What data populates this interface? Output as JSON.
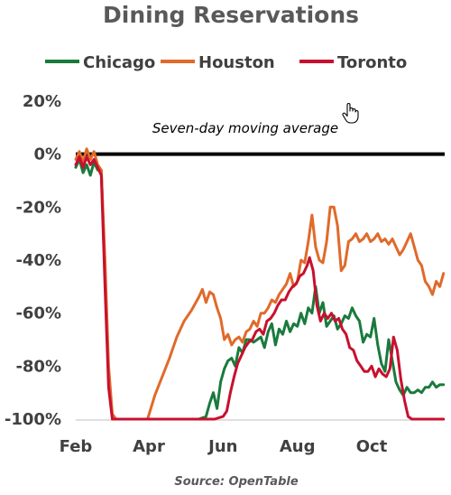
{
  "chart_data": {
    "type": "line",
    "title": "Dining Reservations",
    "annotation": "Seven-day moving average",
    "source": "Source: OpenTable",
    "xlabel": "",
    "ylabel": "",
    "ylim": [
      -100,
      20
    ],
    "y_ticks": [
      "20%",
      "0%",
      "-20%",
      "-40%",
      "-60%",
      "-80%",
      "-100%"
    ],
    "y_tick_values": [
      20,
      0,
      -20,
      -40,
      -60,
      -80,
      -100
    ],
    "x_ticks": [
      "Feb",
      "Apr",
      "Jun",
      "Aug",
      "Oct"
    ],
    "x_tick_values": [
      "2020-02-01",
      "2020-04-01",
      "2020-06-01",
      "2020-08-01",
      "2020-10-01"
    ],
    "xlim": [
      "2020-02-01",
      "2020-11-30"
    ],
    "legend_position": "top",
    "grid": false,
    "series": [
      {
        "name": "Chicago",
        "color": "#1a7a3c",
        "points": [
          [
            "2020-02-01",
            -5
          ],
          [
            "2020-02-04",
            -2
          ],
          [
            "2020-02-07",
            -7
          ],
          [
            "2020-02-10",
            -4
          ],
          [
            "2020-02-13",
            -8
          ],
          [
            "2020-02-16",
            -3
          ],
          [
            "2020-02-19",
            -6
          ],
          [
            "2020-02-22",
            -6
          ],
          [
            "2020-02-25",
            -45
          ],
          [
            "2020-02-28",
            -85
          ],
          [
            "2020-03-02",
            -99
          ],
          [
            "2020-03-05",
            -100
          ],
          [
            "2020-03-20",
            -100
          ],
          [
            "2020-04-15",
            -100
          ],
          [
            "2020-05-01",
            -100
          ],
          [
            "2020-05-12",
            -100
          ],
          [
            "2020-05-18",
            -99
          ],
          [
            "2020-05-21",
            -94
          ],
          [
            "2020-05-24",
            -90
          ],
          [
            "2020-05-27",
            -96
          ],
          [
            "2020-05-30",
            -86
          ],
          [
            "2020-06-02",
            -81
          ],
          [
            "2020-06-05",
            -78
          ],
          [
            "2020-06-08",
            -77
          ],
          [
            "2020-06-11",
            -80
          ],
          [
            "2020-06-14",
            -73
          ],
          [
            "2020-06-17",
            -75
          ],
          [
            "2020-06-20",
            -70
          ],
          [
            "2020-06-23",
            -70
          ],
          [
            "2020-06-26",
            -71
          ],
          [
            "2020-06-29",
            -70
          ],
          [
            "2020-07-02",
            -69
          ],
          [
            "2020-07-05",
            -73
          ],
          [
            "2020-07-08",
            -67
          ],
          [
            "2020-07-11",
            -64
          ],
          [
            "2020-07-14",
            -72
          ],
          [
            "2020-07-17",
            -66
          ],
          [
            "2020-07-20",
            -68
          ],
          [
            "2020-07-23",
            -63
          ],
          [
            "2020-07-26",
            -67
          ],
          [
            "2020-07-29",
            -64
          ],
          [
            "2020-08-01",
            -65
          ],
          [
            "2020-08-04",
            -60
          ],
          [
            "2020-08-07",
            -64
          ],
          [
            "2020-08-10",
            -58
          ],
          [
            "2020-08-13",
            -60
          ],
          [
            "2020-08-16",
            -50
          ],
          [
            "2020-08-19",
            -60
          ],
          [
            "2020-08-22",
            -56
          ],
          [
            "2020-08-25",
            -65
          ],
          [
            "2020-08-28",
            -63
          ],
          [
            "2020-08-31",
            -61
          ],
          [
            "2020-09-03",
            -66
          ],
          [
            "2020-09-06",
            -64
          ],
          [
            "2020-09-09",
            -61
          ],
          [
            "2020-09-12",
            -62
          ],
          [
            "2020-09-15",
            -58
          ],
          [
            "2020-09-18",
            -61
          ],
          [
            "2020-09-21",
            -63
          ],
          [
            "2020-09-24",
            -71
          ],
          [
            "2020-09-27",
            -68
          ],
          [
            "2020-09-30",
            -69
          ],
          [
            "2020-10-03",
            -62
          ],
          [
            "2020-10-06",
            -72
          ],
          [
            "2020-10-09",
            -79
          ],
          [
            "2020-10-12",
            -82
          ],
          [
            "2020-10-15",
            -70
          ],
          [
            "2020-10-18",
            -78
          ],
          [
            "2020-10-21",
            -86
          ],
          [
            "2020-10-24",
            -89
          ],
          [
            "2020-10-27",
            -91
          ],
          [
            "2020-10-30",
            -88
          ],
          [
            "2020-11-02",
            -90
          ],
          [
            "2020-11-05",
            -90
          ],
          [
            "2020-11-08",
            -89
          ],
          [
            "2020-11-11",
            -90
          ],
          [
            "2020-11-14",
            -88
          ],
          [
            "2020-11-17",
            -88
          ],
          [
            "2020-11-20",
            -86
          ],
          [
            "2020-11-23",
            -88
          ],
          [
            "2020-11-26",
            -87
          ],
          [
            "2020-11-29",
            -87
          ]
        ]
      },
      {
        "name": "Houston",
        "color": "#e06a2a",
        "points": [
          [
            "2020-02-01",
            -2
          ],
          [
            "2020-02-04",
            1
          ],
          [
            "2020-02-07",
            -3
          ],
          [
            "2020-02-10",
            2
          ],
          [
            "2020-02-13",
            -2
          ],
          [
            "2020-02-16",
            1
          ],
          [
            "2020-02-19",
            -4
          ],
          [
            "2020-02-22",
            -6
          ],
          [
            "2020-02-25",
            -40
          ],
          [
            "2020-02-28",
            -80
          ],
          [
            "2020-03-02",
            -98
          ],
          [
            "2020-03-05",
            -100
          ],
          [
            "2020-03-20",
            -100
          ],
          [
            "2020-03-31",
            -100
          ],
          [
            "2020-04-06",
            -91
          ],
          [
            "2020-04-12",
            -84
          ],
          [
            "2020-04-18",
            -77
          ],
          [
            "2020-04-24",
            -69
          ],
          [
            "2020-04-30",
            -63
          ],
          [
            "2020-05-06",
            -59
          ],
          [
            "2020-05-12",
            -54
          ],
          [
            "2020-05-15",
            -51
          ],
          [
            "2020-05-18",
            -56
          ],
          [
            "2020-05-21",
            -52
          ],
          [
            "2020-05-24",
            -53
          ],
          [
            "2020-05-27",
            -58
          ],
          [
            "2020-05-30",
            -62
          ],
          [
            "2020-06-02",
            -70
          ],
          [
            "2020-06-05",
            -68
          ],
          [
            "2020-06-08",
            -72
          ],
          [
            "2020-06-11",
            -70
          ],
          [
            "2020-06-14",
            -69
          ],
          [
            "2020-06-17",
            -71
          ],
          [
            "2020-06-20",
            -67
          ],
          [
            "2020-06-23",
            -66
          ],
          [
            "2020-06-26",
            -63
          ],
          [
            "2020-06-29",
            -65
          ],
          [
            "2020-07-02",
            -60
          ],
          [
            "2020-07-05",
            -60
          ],
          [
            "2020-07-08",
            -58
          ],
          [
            "2020-07-11",
            -55
          ],
          [
            "2020-07-14",
            -56
          ],
          [
            "2020-07-17",
            -53
          ],
          [
            "2020-07-20",
            -51
          ],
          [
            "2020-07-23",
            -49
          ],
          [
            "2020-07-26",
            -45
          ],
          [
            "2020-07-29",
            -50
          ],
          [
            "2020-08-01",
            -48
          ],
          [
            "2020-08-04",
            -40
          ],
          [
            "2020-08-07",
            -41
          ],
          [
            "2020-08-10",
            -33
          ],
          [
            "2020-08-13",
            -23
          ],
          [
            "2020-08-16",
            -35
          ],
          [
            "2020-08-19",
            -40
          ],
          [
            "2020-08-22",
            -41
          ],
          [
            "2020-08-25",
            -33
          ],
          [
            "2020-08-28",
            -20
          ],
          [
            "2020-08-31",
            -20
          ],
          [
            "2020-09-03",
            -27
          ],
          [
            "2020-09-06",
            -44
          ],
          [
            "2020-09-09",
            -42
          ],
          [
            "2020-09-12",
            -33
          ],
          [
            "2020-09-15",
            -32
          ],
          [
            "2020-09-18",
            -30
          ],
          [
            "2020-09-21",
            -33
          ],
          [
            "2020-09-24",
            -32
          ],
          [
            "2020-09-27",
            -30
          ],
          [
            "2020-09-30",
            -33
          ],
          [
            "2020-10-03",
            -32
          ],
          [
            "2020-10-06",
            -30
          ],
          [
            "2020-10-09",
            -33
          ],
          [
            "2020-10-12",
            -32
          ],
          [
            "2020-10-15",
            -34
          ],
          [
            "2020-10-18",
            -32
          ],
          [
            "2020-10-21",
            -35
          ],
          [
            "2020-10-24",
            -38
          ],
          [
            "2020-10-27",
            -36
          ],
          [
            "2020-10-30",
            -33
          ],
          [
            "2020-11-02",
            -30
          ],
          [
            "2020-11-05",
            -35
          ],
          [
            "2020-11-08",
            -40
          ],
          [
            "2020-11-11",
            -42
          ],
          [
            "2020-11-14",
            -48
          ],
          [
            "2020-11-17",
            -50
          ],
          [
            "2020-11-20",
            -53
          ],
          [
            "2020-11-23",
            -48
          ],
          [
            "2020-11-26",
            -50
          ],
          [
            "2020-11-29",
            -45
          ]
        ]
      },
      {
        "name": "Toronto",
        "color": "#c8102e",
        "points": [
          [
            "2020-02-01",
            -4
          ],
          [
            "2020-02-04",
            -1
          ],
          [
            "2020-02-07",
            -5
          ],
          [
            "2020-02-10",
            -1
          ],
          [
            "2020-02-13",
            -4
          ],
          [
            "2020-02-16",
            -2
          ],
          [
            "2020-02-19",
            -5
          ],
          [
            "2020-02-22",
            -8
          ],
          [
            "2020-02-25",
            -50
          ],
          [
            "2020-02-28",
            -88
          ],
          [
            "2020-03-02",
            -100
          ],
          [
            "2020-03-20",
            -100
          ],
          [
            "2020-04-15",
            -100
          ],
          [
            "2020-05-01",
            -100
          ],
          [
            "2020-05-15",
            -100
          ],
          [
            "2020-05-25",
            -100
          ],
          [
            "2020-06-01",
            -99
          ],
          [
            "2020-06-04",
            -97
          ],
          [
            "2020-06-07",
            -90
          ],
          [
            "2020-06-10",
            -84
          ],
          [
            "2020-06-13",
            -79
          ],
          [
            "2020-06-16",
            -76
          ],
          [
            "2020-06-19",
            -73
          ],
          [
            "2020-06-22",
            -71
          ],
          [
            "2020-06-25",
            -70
          ],
          [
            "2020-06-28",
            -67
          ],
          [
            "2020-07-01",
            -66
          ],
          [
            "2020-07-04",
            -68
          ],
          [
            "2020-07-07",
            -63
          ],
          [
            "2020-07-10",
            -62
          ],
          [
            "2020-07-13",
            -60
          ],
          [
            "2020-07-16",
            -57
          ],
          [
            "2020-07-19",
            -55
          ],
          [
            "2020-07-22",
            -55
          ],
          [
            "2020-07-25",
            -52
          ],
          [
            "2020-07-28",
            -50
          ],
          [
            "2020-07-31",
            -49
          ],
          [
            "2020-08-03",
            -46
          ],
          [
            "2020-08-06",
            -45
          ],
          [
            "2020-08-09",
            -42
          ],
          [
            "2020-08-11",
            -39
          ],
          [
            "2020-08-14",
            -44
          ],
          [
            "2020-08-17",
            -57
          ],
          [
            "2020-08-20",
            -63
          ],
          [
            "2020-08-23",
            -60
          ],
          [
            "2020-08-26",
            -62
          ],
          [
            "2020-08-29",
            -60
          ],
          [
            "2020-09-01",
            -63
          ],
          [
            "2020-09-04",
            -62
          ],
          [
            "2020-09-07",
            -66
          ],
          [
            "2020-09-10",
            -68
          ],
          [
            "2020-09-13",
            -73
          ],
          [
            "2020-09-16",
            -74
          ],
          [
            "2020-09-19",
            -78
          ],
          [
            "2020-09-22",
            -80
          ],
          [
            "2020-09-25",
            -82
          ],
          [
            "2020-09-28",
            -82
          ],
          [
            "2020-10-01",
            -80
          ],
          [
            "2020-10-04",
            -84
          ],
          [
            "2020-10-07",
            -81
          ],
          [
            "2020-10-10",
            -83
          ],
          [
            "2020-10-13",
            -84
          ],
          [
            "2020-10-16",
            -81
          ],
          [
            "2020-10-19",
            -69
          ],
          [
            "2020-10-22",
            -74
          ],
          [
            "2020-10-25",
            -85
          ],
          [
            "2020-10-28",
            -93
          ],
          [
            "2020-10-31",
            -99
          ],
          [
            "2020-11-03",
            -100
          ],
          [
            "2020-11-15",
            -100
          ],
          [
            "2020-11-29",
            -100
          ]
        ]
      }
    ]
  }
}
